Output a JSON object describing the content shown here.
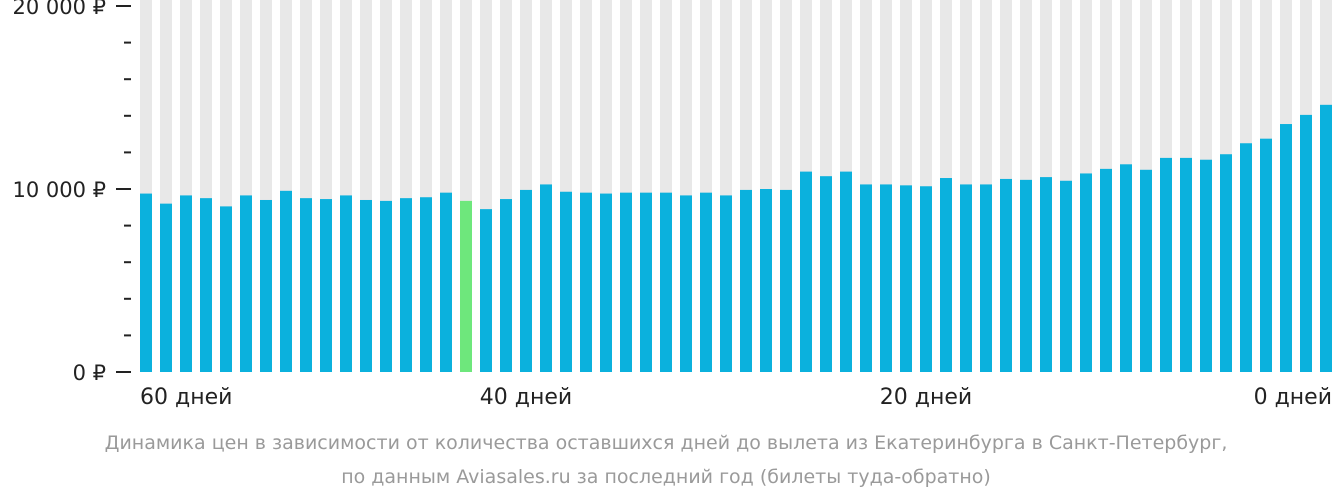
{
  "colors": {
    "bar": "#0bb1dd",
    "highlight_bar": "#6ee77c",
    "bar_background": "#e8e8e8",
    "axis": "#222222",
    "caption": "#9a9a9a"
  },
  "chart_data": {
    "type": "bar",
    "ylim": [
      0,
      20000
    ],
    "grid": false,
    "legend": "none",
    "y_tick_labels": [
      {
        "value": 20000,
        "label": "20 000 ₽"
      },
      {
        "value": 10000,
        "label": "10 000 ₽"
      },
      {
        "value": 0,
        "label": "0 ₽"
      }
    ],
    "y_minor_tick_values": [
      18000,
      16000,
      14000,
      12000,
      8000,
      6000,
      4000,
      2000
    ],
    "x_tick_labels": [
      {
        "days": 60,
        "label": "60 дней"
      },
      {
        "days": 40,
        "label": "40 дней"
      },
      {
        "days": 20,
        "label": "20 дней"
      },
      {
        "days": 0,
        "label": "0 дней"
      }
    ],
    "highlight_day": 43,
    "days_before_departure": [
      59,
      58,
      57,
      56,
      55,
      54,
      53,
      52,
      51,
      50,
      49,
      48,
      47,
      46,
      45,
      44,
      43,
      42,
      41,
      40,
      39,
      38,
      37,
      36,
      35,
      34,
      33,
      32,
      31,
      30,
      29,
      28,
      27,
      26,
      25,
      24,
      23,
      22,
      21,
      20,
      19,
      18,
      17,
      16,
      15,
      14,
      13,
      12,
      11,
      10,
      9,
      8,
      7,
      6,
      5,
      4,
      3,
      2,
      1,
      0
    ],
    "values": [
      9750,
      9200,
      9650,
      9500,
      9050,
      9650,
      9400,
      9900,
      9500,
      9450,
      9650,
      9400,
      9350,
      9500,
      9550,
      9800,
      9350,
      8900,
      9450,
      9950,
      10250,
      9850,
      9800,
      9750,
      9800,
      9800,
      9800,
      9650,
      9800,
      9650,
      9950,
      10000,
      9950,
      10950,
      10700,
      10950,
      10250,
      10250,
      10200,
      10150,
      10600,
      10250,
      10250,
      10550,
      10500,
      10650,
      10450,
      10850,
      11100,
      11350,
      11050,
      11700,
      11700,
      11600,
      11900,
      12500,
      12750,
      13550,
      14050,
      14600
    ]
  },
  "caption": {
    "line1": "Динамика цен в зависимости от количества оставшихся дней до вылета из Екатеринбурга в Санкт-Петербург,",
    "line2": "по данным Aviasales.ru за последний год (билеты туда-обратно)"
  }
}
